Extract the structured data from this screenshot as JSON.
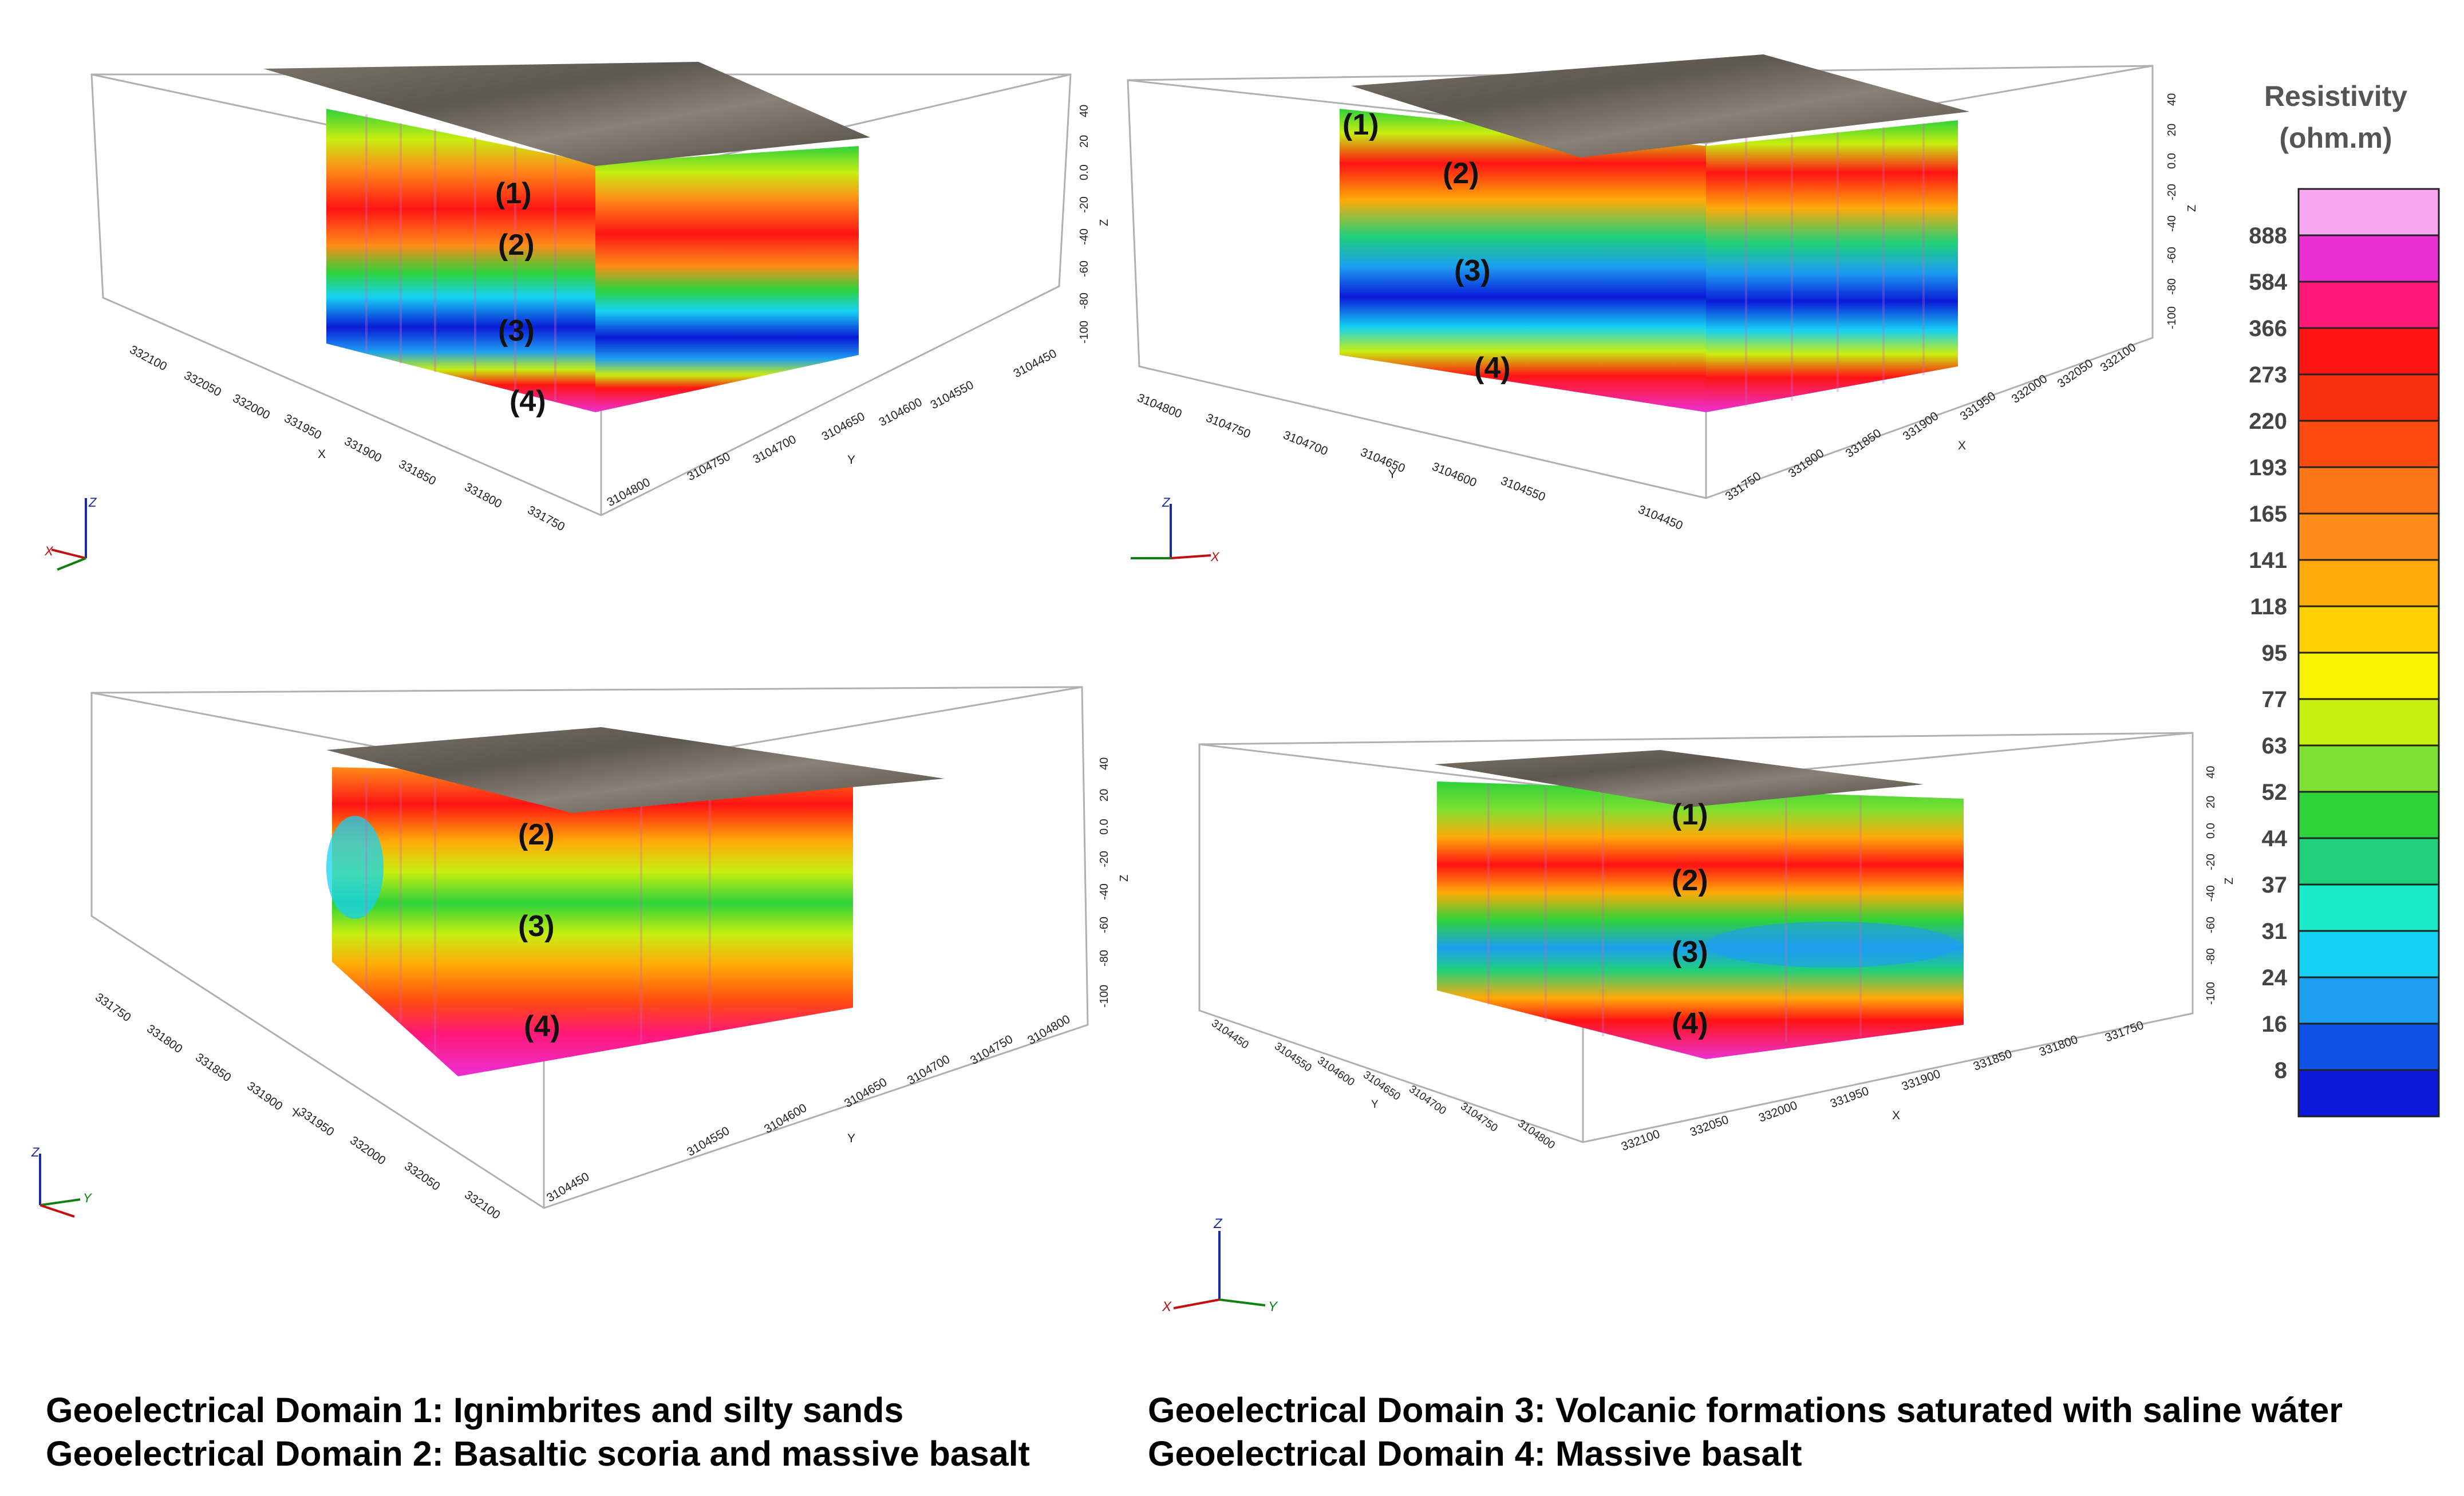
{
  "panels": [
    {
      "name": "top-left",
      "layers": [
        "(1)",
        "(2)",
        "(3)",
        "(4)"
      ],
      "z_ticks": [
        "40",
        "20",
        "0.0",
        "-20",
        "-40",
        "-60",
        "-80",
        "-100"
      ],
      "z_label": "Z",
      "front_axis": {
        "label": "X",
        "ticks": [
          "332100",
          "332050",
          "332000",
          "331950",
          "331900",
          "331850",
          "331800",
          "331750"
        ]
      },
      "right_axis": {
        "label": "Y",
        "ticks": [
          "3104800",
          "3104750",
          "3104700",
          "3104650",
          "3104600",
          "3104550",
          "3104450"
        ]
      },
      "triad": {
        "up": "Z",
        "left": "X",
        "right": ""
      }
    },
    {
      "name": "top-right",
      "layers": [
        "(1)",
        "(2)",
        "(3)",
        "(4)"
      ],
      "z_ticks": [
        "40",
        "20",
        "0.0",
        "-20",
        "-40",
        "-60",
        "-80",
        "-100"
      ],
      "z_label": "Z",
      "front_axis": {
        "label": "Y",
        "ticks": [
          "3104800",
          "3104750",
          "3104700",
          "3104650",
          "3104600",
          "3104550",
          "3104450"
        ]
      },
      "right_axis": {
        "label": "X",
        "ticks": [
          "331750",
          "331800",
          "331850",
          "331900",
          "331950",
          "332000",
          "332050",
          "332100"
        ]
      },
      "triad": {
        "up": "Z",
        "left": "",
        "right": "X"
      }
    },
    {
      "name": "bottom-left",
      "layers": [
        "(2)",
        "(3)",
        "(4)"
      ],
      "z_ticks": [
        "40",
        "20",
        "0.0",
        "-20",
        "-40",
        "-60",
        "-80",
        "-100"
      ],
      "z_label": "Z",
      "front_axis": {
        "label": "X",
        "ticks": [
          "331750",
          "331800",
          "331850",
          "331900",
          "331950",
          "332000",
          "332050",
          "332100"
        ]
      },
      "right_axis": {
        "label": "Y",
        "ticks": [
          "3104450",
          "3104550",
          "3104600",
          "3104650",
          "3104700",
          "3104750",
          "3104800"
        ]
      },
      "triad": {
        "up": "Z",
        "left": "",
        "right": "Y"
      }
    },
    {
      "name": "bottom-right",
      "layers": [
        "(1)",
        "(2)",
        "(3)",
        "(4)"
      ],
      "z_ticks": [
        "40",
        "20",
        "0.0",
        "-20",
        "-40",
        "-60",
        "-80",
        "-100"
      ],
      "z_label": "Z",
      "front_axis": {
        "label": "Y",
        "ticks": [
          "3104450",
          "3104550",
          "3104600",
          "3104650",
          "3104700",
          "3104750",
          "3104800"
        ]
      },
      "right_axis": {
        "label": "X",
        "ticks": [
          "332100",
          "332050",
          "332000",
          "331950",
          "331900",
          "331850",
          "331800",
          "331750"
        ]
      },
      "triad": {
        "up": "Z",
        "left": "X",
        "right": "Y"
      }
    }
  ],
  "legend": {
    "title_line1": "Resistivity",
    "title_line2": "(ohm.m)",
    "labels": [
      "888",
      "584",
      "366",
      "273",
      "220",
      "193",
      "165",
      "141",
      "118",
      "95",
      "77",
      "63",
      "52",
      "44",
      "37",
      "31",
      "24",
      "16",
      "8"
    ],
    "colors": [
      "#f7a8ef",
      "#ec2fd2",
      "#ff1877",
      "#ff1414",
      "#f83010",
      "#ff4a10",
      "#ff7414",
      "#ff8c18",
      "#ffaa08",
      "#ffd000",
      "#f7f200",
      "#c8ee10",
      "#7ee030",
      "#2ed23a",
      "#20d07a",
      "#18ecc8",
      "#15d2f2",
      "#1c9ff0",
      "#0f52e6",
      "#0a1ad8"
    ]
  },
  "captions": {
    "line1_left": "Geoelectrical Domain 1: Ignimbrites and silty sands",
    "line2_left": "Geoelectrical Domain 2: Basaltic scoria and massive basalt",
    "line1_right": "Geoelectrical Domain 3: Volcanic formations saturated with saline wáter",
    "line2_right": "Geoelectrical Domain 4: Massive basalt"
  },
  "colors": {
    "low": "#0a1ad8",
    "mid": "#2ed23a",
    "high": "#ff1414",
    "very_high": "#ec2fd2",
    "terrain": "#6e665c"
  }
}
